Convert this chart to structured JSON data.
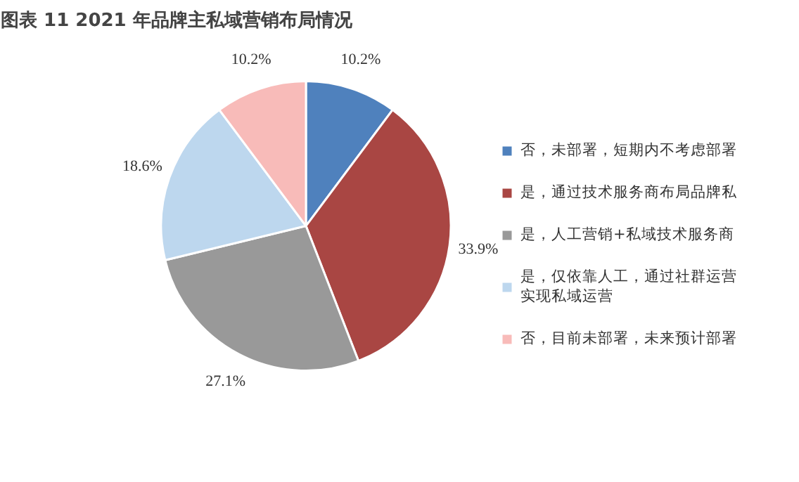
{
  "chart_data": {
    "type": "pie",
    "title": "图表 11 2021 年品牌主私域营销布局情况",
    "categories": [
      "否，未部署，短期内不考虑部署",
      "是，通过技术服务商布局品牌私",
      "是，人工营销+私域技术服务商",
      "是，仅依靠人工，通过社群运营实现私域运营",
      "否，目前未部署，未来预计部署"
    ],
    "values": [
      10.2,
      33.9,
      27.1,
      18.6,
      10.2
    ],
    "colors": [
      "#4f81bd",
      "#a94643",
      "#999999",
      "#bdd7ee",
      "#f8bbb9"
    ],
    "value_labels": [
      "10.2%",
      "33.9%",
      "27.1%",
      "18.6%",
      "10.2%"
    ],
    "legend": "right"
  }
}
